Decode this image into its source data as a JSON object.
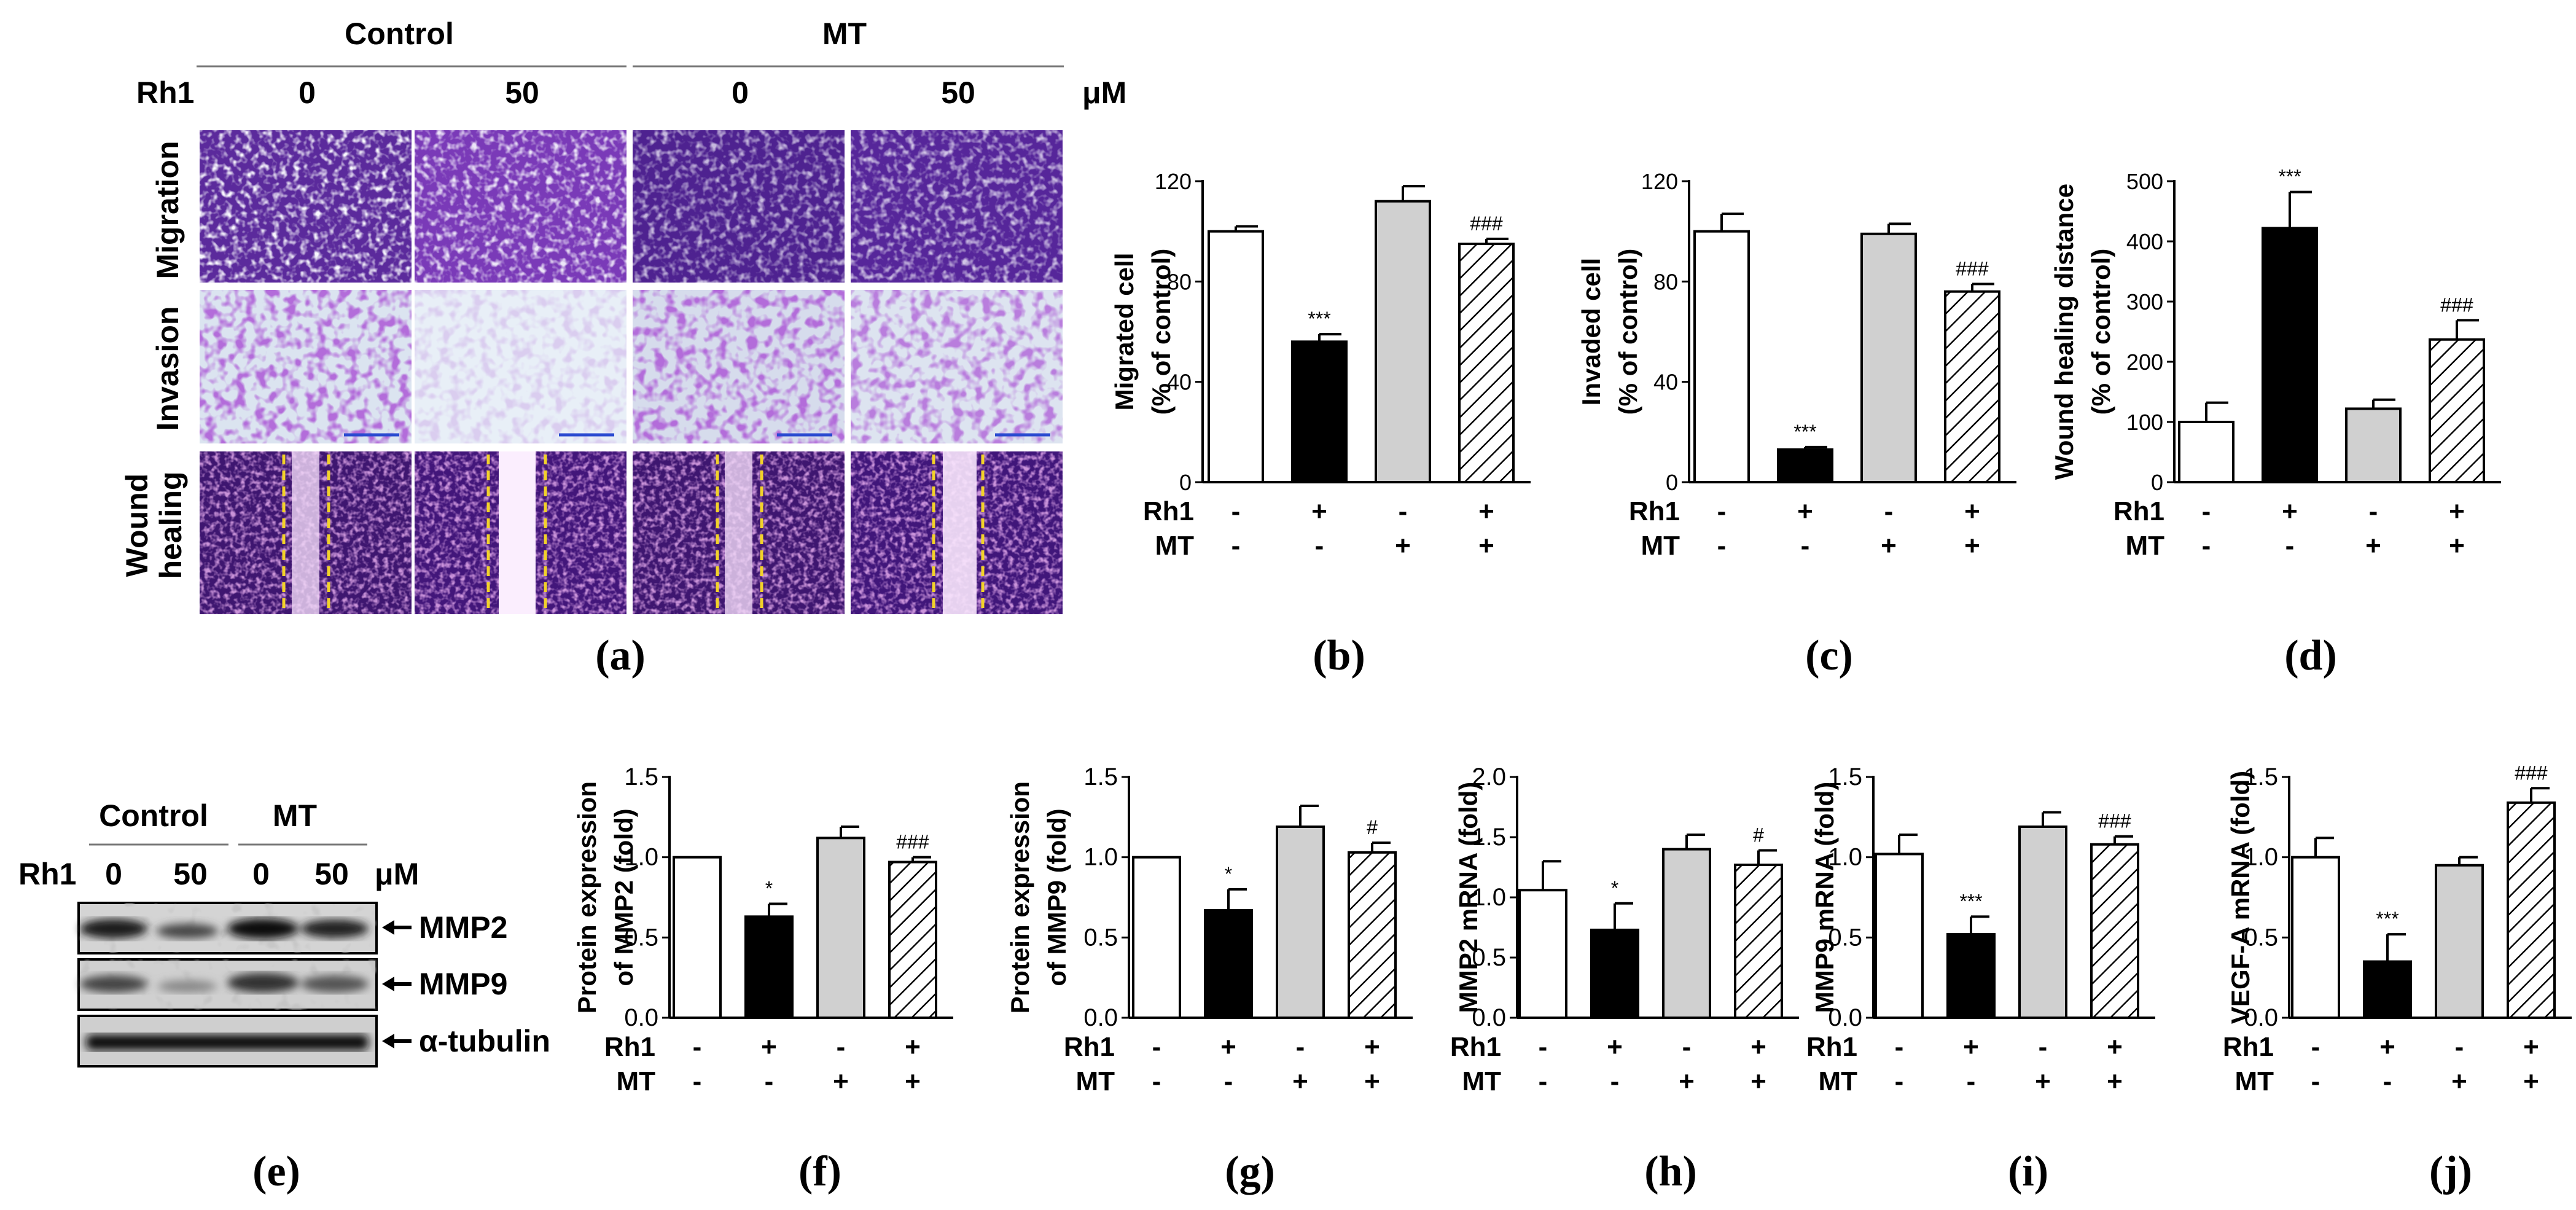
{
  "panel_labels": [
    "(a)",
    "(b)",
    "(c)",
    "(d)",
    "(e)",
    "(f)",
    "(g)",
    "(h)",
    "(i)",
    "(j)"
  ],
  "micrographs": {
    "group_labels": [
      "Control",
      "MT"
    ],
    "treatment_label": "Rh1",
    "doses": [
      "0",
      "50",
      "0",
      "50"
    ],
    "unit": "μM",
    "row_labels": [
      "Migration",
      "Invasion",
      "Wound healing"
    ],
    "colors": {
      "migration": "#5a2a9a",
      "invasion_bg": "#e6eef6",
      "wound": "#4a1a7a",
      "stain": "#7a2ab0",
      "wound_line": "#f2d22a"
    }
  },
  "western_blot": {
    "group_labels": [
      "Control",
      "MT"
    ],
    "treatment_label": "Rh1",
    "doses": [
      "0",
      "50",
      "0",
      "50"
    ],
    "unit": "μM",
    "bands": [
      "MMP2",
      "MMP9",
      "α-tubulin"
    ]
  },
  "conditions": {
    "rows": [
      "Rh1",
      "MT"
    ],
    "rh1": [
      "-",
      "+",
      "-",
      "+"
    ],
    "mt": [
      "-",
      "-",
      "+",
      "+"
    ]
  },
  "bar_colors": [
    "#ffffff",
    "#000000",
    "#d0d0d0",
    "hatch"
  ],
  "chart_data": [
    {
      "id": "b",
      "type": "bar",
      "ylabel": "Migrated cell\n(% of control)",
      "ylim": [
        0,
        120
      ],
      "yticks": [
        0,
        40,
        80,
        120
      ],
      "values": [
        100,
        56,
        112,
        95
      ],
      "errors": [
        2,
        3,
        6,
        2
      ],
      "annotations": [
        "",
        "***",
        "",
        "###"
      ]
    },
    {
      "id": "c",
      "type": "bar",
      "ylabel": "Invaded cell\n(% of control)",
      "ylim": [
        0,
        120
      ],
      "yticks": [
        0,
        40,
        80,
        120
      ],
      "values": [
        100,
        13,
        99,
        76
      ],
      "errors": [
        7,
        1,
        4,
        3
      ],
      "annotations": [
        "",
        "***",
        "",
        "###"
      ]
    },
    {
      "id": "d",
      "type": "bar",
      "ylabel": "Wound healing distance\n(% of control)",
      "ylim": [
        0,
        500
      ],
      "yticks": [
        0,
        100,
        200,
        300,
        400,
        500
      ],
      "values": [
        100,
        422,
        122,
        237
      ],
      "errors": [
        32,
        60,
        15,
        32
      ],
      "annotations": [
        "",
        "***",
        "",
        "###"
      ]
    },
    {
      "id": "f",
      "type": "bar",
      "ylabel": "Protein expression\nof MMP2 (fold)",
      "ylim": [
        0,
        1.5
      ],
      "yticks": [
        "0.0",
        "0.5",
        "1.0",
        "1.5"
      ],
      "values": [
        1.0,
        0.63,
        1.12,
        0.97
      ],
      "errors": [
        0,
        0.08,
        0.07,
        0.03
      ],
      "annotations": [
        "",
        "*",
        "",
        "###"
      ]
    },
    {
      "id": "g",
      "type": "bar",
      "ylabel": "Protein expression\nof MMP9 (fold)",
      "ylim": [
        0,
        1.5
      ],
      "yticks": [
        "0.0",
        "0.5",
        "1.0",
        "1.5"
      ],
      "values": [
        1.0,
        0.67,
        1.19,
        1.03
      ],
      "errors": [
        0,
        0.13,
        0.13,
        0.06
      ],
      "annotations": [
        "",
        "*",
        "",
        "#"
      ]
    },
    {
      "id": "h",
      "type": "bar",
      "ylabel": "MMP2 mRNA (fold)",
      "ylim": [
        0,
        2.0
      ],
      "yticks": [
        "0.0",
        "0.5",
        "1.0",
        "1.5",
        "2.0"
      ],
      "values": [
        1.06,
        0.73,
        1.4,
        1.27
      ],
      "errors": [
        0.24,
        0.22,
        0.12,
        0.12
      ],
      "annotations": [
        "",
        "*",
        "",
        "#"
      ]
    },
    {
      "id": "i",
      "type": "bar",
      "ylabel": "MMP9 mRNA (fold)",
      "ylim": [
        0,
        1.5
      ],
      "yticks": [
        "0.0",
        "0.5",
        "1.0",
        "1.5"
      ],
      "values": [
        1.02,
        0.52,
        1.19,
        1.08
      ],
      "errors": [
        0.12,
        0.11,
        0.09,
        0.05
      ],
      "annotations": [
        "",
        "***",
        "",
        "###"
      ]
    },
    {
      "id": "j",
      "type": "bar",
      "ylabel": "VEGF-A mRNA (fold)",
      "ylim": [
        0,
        1.5
      ],
      "yticks": [
        "0.0",
        "0.5",
        "1.0",
        "1.5"
      ],
      "values": [
        1.0,
        0.35,
        0.95,
        1.34
      ],
      "errors": [
        0.12,
        0.17,
        0.05,
        0.09
      ],
      "annotations": [
        "",
        "***",
        "",
        "###"
      ]
    }
  ]
}
